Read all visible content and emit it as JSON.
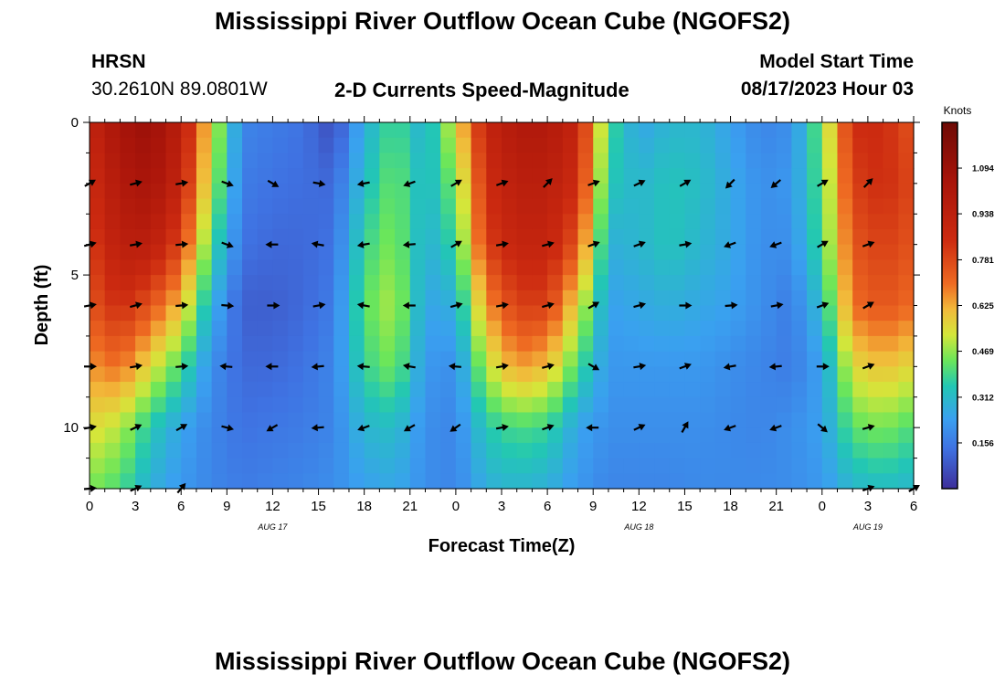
{
  "page": {
    "title_top": "Mississippi River Outflow Ocean Cube (NGOFS2)",
    "title_bottom": "Mississippi River Outflow Ocean Cube (NGOFS2)",
    "station_id": "HRSN",
    "station_coords": "30.2610N  89.0801W",
    "plot_subtitle": "2-D Currents Speed-Magnitude",
    "model_start_label": "Model Start Time",
    "model_start_value": "08/17/2023 Hour 03"
  },
  "chart_data": {
    "type": "heatmap",
    "title": "2-D Currents Speed-Magnitude",
    "xlabel": "Forecast Time(Z)",
    "ylabel": "Depth (ft)",
    "xlim": [
      0,
      54
    ],
    "ylim": [
      12,
      0
    ],
    "x_ticks": [
      0,
      3,
      6,
      9,
      12,
      15,
      18,
      21,
      24,
      27,
      30,
      33,
      36,
      39,
      42,
      45,
      48,
      51,
      54
    ],
    "x_tick_labels": [
      "0",
      "3",
      "6",
      "9",
      "12",
      "15",
      "18",
      "21",
      "0",
      "3",
      "6",
      "9",
      "12",
      "15",
      "18",
      "21",
      "0",
      "3",
      "6"
    ],
    "y_ticks": [
      0,
      5,
      10
    ],
    "y_tick_labels": [
      "0",
      "5",
      "10"
    ],
    "date_labels": [
      {
        "x": 12,
        "text": "AUG 17"
      },
      {
        "x": 36,
        "text": "AUG 18"
      },
      {
        "x": 51,
        "text": "AUG 19"
      }
    ],
    "colorbar": {
      "label": "Knots",
      "min": 0.0,
      "max": 1.25,
      "ticks": [
        0.156,
        0.312,
        0.469,
        0.625,
        0.781,
        0.938,
        1.094
      ],
      "tick_labels": [
        "0.156",
        "0.312",
        "0.469",
        "0.625",
        "0.781",
        "0.938",
        "1.094"
      ]
    },
    "grid": {
      "hours": [
        0,
        2,
        4,
        6,
        8,
        10,
        12,
        14,
        16,
        18,
        20,
        22,
        24,
        26,
        28,
        30,
        32,
        34,
        36,
        38,
        40,
        42,
        44,
        46,
        48,
        50,
        52,
        54
      ],
      "depths": [
        0,
        2,
        4,
        6,
        8,
        10,
        12
      ],
      "speed": [
        [
          0.9,
          1.05,
          1.1,
          0.95,
          0.55,
          0.18,
          0.16,
          0.14,
          0.06,
          0.28,
          0.4,
          0.28,
          0.55,
          0.9,
          1.0,
          1.0,
          0.9,
          0.4,
          0.25,
          0.3,
          0.3,
          0.24,
          0.18,
          0.2,
          0.45,
          0.85,
          0.85,
          0.75
        ],
        [
          0.85,
          1.0,
          1.05,
          0.9,
          0.5,
          0.16,
          0.14,
          0.13,
          0.12,
          0.32,
          0.44,
          0.3,
          0.45,
          0.85,
          0.95,
          0.95,
          0.85,
          0.35,
          0.3,
          0.34,
          0.32,
          0.26,
          0.2,
          0.22,
          0.42,
          0.8,
          0.85,
          0.78
        ],
        [
          0.8,
          0.95,
          0.95,
          0.78,
          0.4,
          0.14,
          0.12,
          0.12,
          0.14,
          0.38,
          0.46,
          0.28,
          0.38,
          0.8,
          0.9,
          0.9,
          0.75,
          0.28,
          0.3,
          0.34,
          0.3,
          0.26,
          0.2,
          0.2,
          0.4,
          0.75,
          0.8,
          0.75
        ],
        [
          0.75,
          0.85,
          0.75,
          0.6,
          0.28,
          0.1,
          0.1,
          0.12,
          0.16,
          0.42,
          0.5,
          0.25,
          0.28,
          0.65,
          0.8,
          0.8,
          0.55,
          0.24,
          0.26,
          0.28,
          0.26,
          0.24,
          0.2,
          0.16,
          0.32,
          0.7,
          0.75,
          0.7
        ],
        [
          0.65,
          0.7,
          0.55,
          0.4,
          0.2,
          0.12,
          0.12,
          0.14,
          0.18,
          0.38,
          0.45,
          0.22,
          0.2,
          0.5,
          0.65,
          0.6,
          0.4,
          0.22,
          0.22,
          0.22,
          0.22,
          0.2,
          0.18,
          0.16,
          0.24,
          0.55,
          0.6,
          0.55
        ],
        [
          0.55,
          0.5,
          0.35,
          0.25,
          0.18,
          0.14,
          0.15,
          0.16,
          0.18,
          0.3,
          0.32,
          0.2,
          0.18,
          0.35,
          0.4,
          0.38,
          0.25,
          0.2,
          0.2,
          0.2,
          0.2,
          0.19,
          0.18,
          0.2,
          0.24,
          0.42,
          0.45,
          0.4
        ],
        [
          0.45,
          0.4,
          0.28,
          0.22,
          0.18,
          0.16,
          0.17,
          0.18,
          0.2,
          0.24,
          0.26,
          0.2,
          0.18,
          0.28,
          0.3,
          0.28,
          0.22,
          0.18,
          0.18,
          0.18,
          0.19,
          0.19,
          0.19,
          0.2,
          0.22,
          0.3,
          0.32,
          0.3
        ]
      ]
    },
    "vectors": [
      {
        "hour": 0,
        "depth": 2,
        "dir": 60
      },
      {
        "hour": 3,
        "depth": 2,
        "dir": 75
      },
      {
        "hour": 6,
        "depth": 2,
        "dir": 80
      },
      {
        "hour": 9,
        "depth": 2,
        "dir": 110
      },
      {
        "hour": 12,
        "depth": 2,
        "dir": 120
      },
      {
        "hour": 15,
        "depth": 2,
        "dir": 100
      },
      {
        "hour": 18,
        "depth": 2,
        "dir": 260
      },
      {
        "hour": 21,
        "depth": 2,
        "dir": 250
      },
      {
        "hour": 24,
        "depth": 2,
        "dir": 60
      },
      {
        "hour": 27,
        "depth": 2,
        "dir": 70
      },
      {
        "hour": 30,
        "depth": 2,
        "dir": 45
      },
      {
        "hour": 33,
        "depth": 2,
        "dir": 70
      },
      {
        "hour": 36,
        "depth": 2,
        "dir": 65
      },
      {
        "hour": 39,
        "depth": 2,
        "dir": 60
      },
      {
        "hour": 42,
        "depth": 2,
        "dir": 225
      },
      {
        "hour": 45,
        "depth": 2,
        "dir": 230
      },
      {
        "hour": 48,
        "depth": 2,
        "dir": 60
      },
      {
        "hour": 51,
        "depth": 2,
        "dir": 45
      },
      {
        "hour": 0,
        "depth": 4,
        "dir": 75
      },
      {
        "hour": 3,
        "depth": 4,
        "dir": 80
      },
      {
        "hour": 6,
        "depth": 4,
        "dir": 85
      },
      {
        "hour": 9,
        "depth": 4,
        "dir": 110
      },
      {
        "hour": 12,
        "depth": 4,
        "dir": 270
      },
      {
        "hour": 15,
        "depth": 4,
        "dir": 280
      },
      {
        "hour": 18,
        "depth": 4,
        "dir": 260
      },
      {
        "hour": 21,
        "depth": 4,
        "dir": 265
      },
      {
        "hour": 24,
        "depth": 4,
        "dir": 60
      },
      {
        "hour": 27,
        "depth": 4,
        "dir": 80
      },
      {
        "hour": 30,
        "depth": 4,
        "dir": 75
      },
      {
        "hour": 33,
        "depth": 4,
        "dir": 70
      },
      {
        "hour": 36,
        "depth": 4,
        "dir": 70
      },
      {
        "hour": 39,
        "depth": 4,
        "dir": 80
      },
      {
        "hour": 42,
        "depth": 4,
        "dir": 250
      },
      {
        "hour": 45,
        "depth": 4,
        "dir": 250
      },
      {
        "hour": 48,
        "depth": 4,
        "dir": 60
      },
      {
        "hour": 51,
        "depth": 4,
        "dir": 70
      },
      {
        "hour": 0,
        "depth": 6,
        "dir": 80
      },
      {
        "hour": 3,
        "depth": 6,
        "dir": 75
      },
      {
        "hour": 6,
        "depth": 6,
        "dir": 85
      },
      {
        "hour": 9,
        "depth": 6,
        "dir": 95
      },
      {
        "hour": 12,
        "depth": 6,
        "dir": 90
      },
      {
        "hour": 15,
        "depth": 6,
        "dir": 80
      },
      {
        "hour": 18,
        "depth": 6,
        "dir": 280
      },
      {
        "hour": 21,
        "depth": 6,
        "dir": 270
      },
      {
        "hour": 24,
        "depth": 6,
        "dir": 75
      },
      {
        "hour": 27,
        "depth": 6,
        "dir": 80
      },
      {
        "hour": 30,
        "depth": 6,
        "dir": 75
      },
      {
        "hour": 33,
        "depth": 6,
        "dir": 60
      },
      {
        "hour": 36,
        "depth": 6,
        "dir": 75
      },
      {
        "hour": 39,
        "depth": 6,
        "dir": 90
      },
      {
        "hour": 42,
        "depth": 6,
        "dir": 85
      },
      {
        "hour": 45,
        "depth": 6,
        "dir": 80
      },
      {
        "hour": 48,
        "depth": 6,
        "dir": 70
      },
      {
        "hour": 51,
        "depth": 6,
        "dir": 60
      },
      {
        "hour": 0,
        "depth": 8,
        "dir": 90
      },
      {
        "hour": 3,
        "depth": 8,
        "dir": 80
      },
      {
        "hour": 6,
        "depth": 8,
        "dir": 85
      },
      {
        "hour": 9,
        "depth": 8,
        "dir": 275
      },
      {
        "hour": 12,
        "depth": 8,
        "dir": 270
      },
      {
        "hour": 15,
        "depth": 8,
        "dir": 265
      },
      {
        "hour": 18,
        "depth": 8,
        "dir": 275
      },
      {
        "hour": 21,
        "depth": 8,
        "dir": 280
      },
      {
        "hour": 24,
        "depth": 8,
        "dir": 275
      },
      {
        "hour": 27,
        "depth": 8,
        "dir": 80
      },
      {
        "hour": 30,
        "depth": 8,
        "dir": 75
      },
      {
        "hour": 33,
        "depth": 8,
        "dir": 120
      },
      {
        "hour": 36,
        "depth": 8,
        "dir": 80
      },
      {
        "hour": 39,
        "depth": 8,
        "dir": 70
      },
      {
        "hour": 42,
        "depth": 8,
        "dir": 260
      },
      {
        "hour": 45,
        "depth": 8,
        "dir": 265
      },
      {
        "hour": 48,
        "depth": 8,
        "dir": 90
      },
      {
        "hour": 51,
        "depth": 8,
        "dir": 70
      },
      {
        "hour": 0,
        "depth": 10,
        "dir": 80
      },
      {
        "hour": 3,
        "depth": 10,
        "dir": 65
      },
      {
        "hour": 6,
        "depth": 10,
        "dir": 60
      },
      {
        "hour": 9,
        "depth": 10,
        "dir": 105
      },
      {
        "hour": 12,
        "depth": 10,
        "dir": 240
      },
      {
        "hour": 15,
        "depth": 10,
        "dir": 265
      },
      {
        "hour": 18,
        "depth": 10,
        "dir": 250
      },
      {
        "hour": 21,
        "depth": 10,
        "dir": 240
      },
      {
        "hour": 24,
        "depth": 10,
        "dir": 235
      },
      {
        "hour": 27,
        "depth": 10,
        "dir": 80
      },
      {
        "hour": 30,
        "depth": 10,
        "dir": 70
      },
      {
        "hour": 33,
        "depth": 10,
        "dir": 270
      },
      {
        "hour": 36,
        "depth": 10,
        "dir": 65
      },
      {
        "hour": 39,
        "depth": 10,
        "dir": 30
      },
      {
        "hour": 42,
        "depth": 10,
        "dir": 250
      },
      {
        "hour": 45,
        "depth": 10,
        "dir": 250
      },
      {
        "hour": 48,
        "depth": 10,
        "dir": 130
      },
      {
        "hour": 51,
        "depth": 10,
        "dir": 75
      },
      {
        "hour": 0,
        "depth": 12,
        "dir": 85
      },
      {
        "hour": 3,
        "depth": 12,
        "dir": 65
      },
      {
        "hour": 6,
        "depth": 12,
        "dir": 40
      },
      {
        "hour": 51,
        "depth": 12,
        "dir": 70
      },
      {
        "hour": 54,
        "depth": 12,
        "dir": 60
      }
    ]
  }
}
